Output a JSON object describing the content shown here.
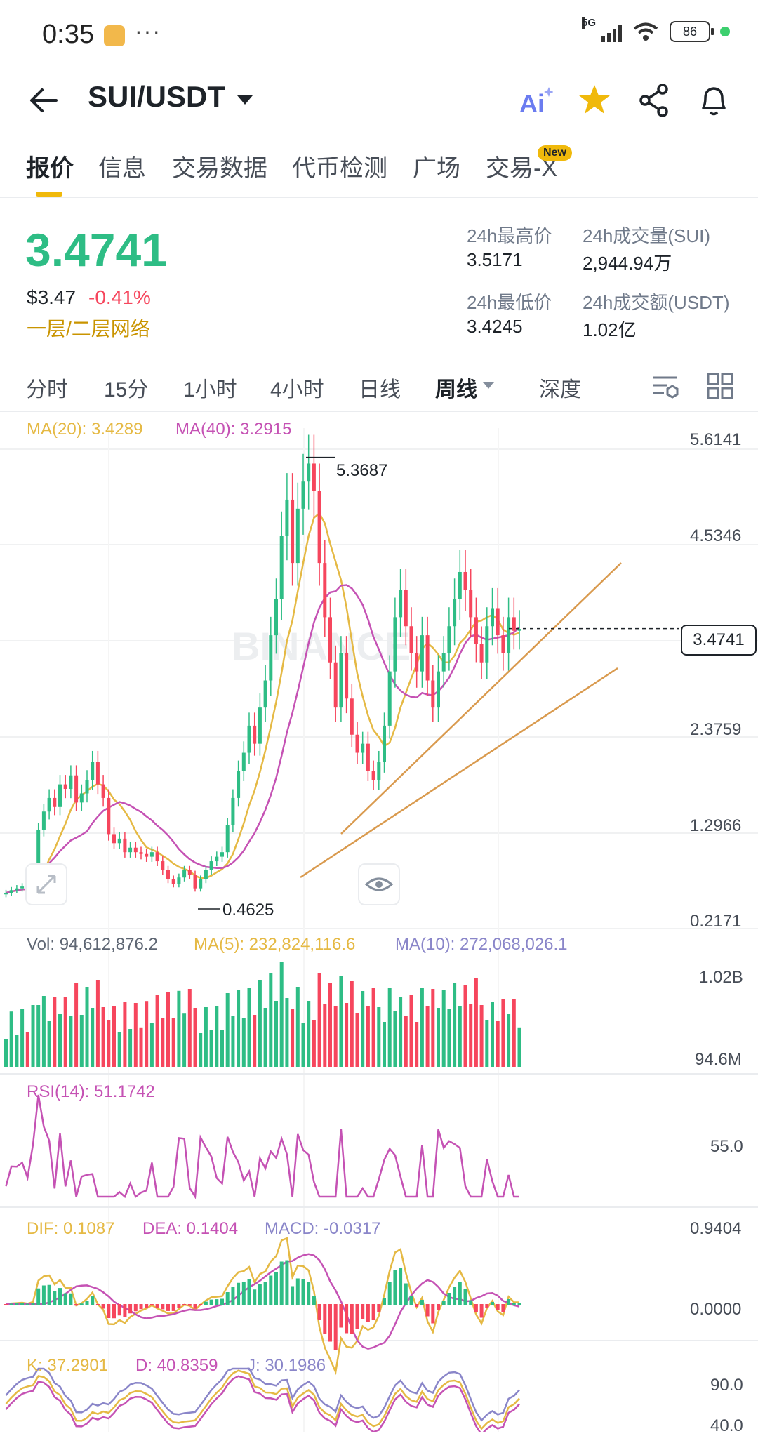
{
  "status_bar": {
    "time": "0:35",
    "more": "···",
    "network": "5G",
    "battery": "86"
  },
  "header": {
    "pair": "SUI/USDT"
  },
  "tabs": [
    {
      "label": "报价"
    },
    {
      "label": "信息"
    },
    {
      "label": "交易数据"
    },
    {
      "label": "代币检测"
    },
    {
      "label": "广场"
    },
    {
      "label": "交易-X"
    }
  ],
  "new_badge": "New",
  "price": {
    "last": "3.4741",
    "usd": "$3.47",
    "change": "-0.41%",
    "network_tag": "一层/二层网络"
  },
  "stats": {
    "high_label": "24h最高价",
    "high": "3.5171",
    "vol_label": "24h成交量(SUI)",
    "vol": "2,944.94万",
    "low_label": "24h最低价",
    "low": "3.4245",
    "turnover_label": "24h成交额(USDT)",
    "turnover": "1.02亿"
  },
  "timeframes": [
    "分时",
    "15分",
    "1小时",
    "4小时",
    "日线",
    "周线",
    "深度"
  ],
  "active_timeframe": "周线",
  "indicators": {
    "ma20": "MA(20): 3.4289",
    "ma40": "MA(40): 3.2915",
    "vol": "Vol: 94,612,876.2",
    "vol_ma5": "MA(5): 232,824,116.6",
    "vol_ma10": "MA(10): 272,068,026.1",
    "rsi": "RSI(14): 51.1742",
    "dif": "DIF: 0.1087",
    "dea": "DEA: 0.1404",
    "macd": "MACD: -0.0317",
    "k": "K: 37.2901",
    "d": "D: 40.8359",
    "j": "J: 30.1986"
  },
  "axis": {
    "price": [
      "5.6141",
      "4.5346",
      "2.3759",
      "1.2966",
      "0.2171"
    ],
    "current_price": "3.4741",
    "high_mark": "5.3687",
    "low_mark": "0.4625",
    "vol": [
      "1.02B",
      "94.6M"
    ],
    "rsi": [
      "55.0"
    ],
    "macd": [
      "0.9404",
      "0.0000"
    ],
    "kdj": [
      "90.0",
      "40.0"
    ]
  },
  "colors": {
    "up": "#2ebd85",
    "down": "#f6465d",
    "accent": "#f0b90b",
    "ma20": "#e5b944",
    "ma40": "#c552b4",
    "trendline": "#d99a4e"
  },
  "chart_data": {
    "type": "candlestick",
    "interval": "周线",
    "ylim": [
      0.2171,
      5.6141
    ],
    "price_high": 5.3687,
    "price_low": 0.4625,
    "current": 3.4741,
    "closes": [
      0.55,
      0.58,
      0.6,
      0.62,
      0.6,
      0.65,
      1.25,
      1.45,
      1.6,
      1.5,
      1.75,
      1.7,
      1.85,
      1.55,
      1.65,
      1.8,
      2.0,
      1.75,
      1.6,
      1.2,
      1.1,
      1.15,
      1.0,
      1.05,
      1.0,
      0.98,
      0.95,
      1.0,
      0.9,
      0.8,
      0.7,
      0.65,
      0.72,
      0.8,
      0.75,
      0.6,
      0.7,
      0.8,
      0.9,
      0.95,
      1.0,
      1.3,
      1.6,
      1.9,
      2.1,
      2.4,
      2.2,
      2.6,
      2.9,
      3.4,
      3.8,
      4.5,
      4.9,
      4.2,
      4.8,
      5.1,
      5.3,
      5.0,
      4.2,
      3.6,
      3.1,
      2.6,
      3.2,
      2.7,
      2.3,
      2.1,
      2.2,
      1.9,
      1.8,
      2.0,
      2.4,
      3.0,
      3.6,
      3.9,
      3.5,
      3.2,
      3.0,
      3.4,
      2.9,
      2.6,
      3.0,
      3.2,
      3.5,
      3.8,
      4.1,
      3.9,
      3.6,
      3.3,
      3.1,
      3.5,
      3.7,
      3.4,
      3.2,
      3.6,
      3.45,
      3.47
    ]
  }
}
